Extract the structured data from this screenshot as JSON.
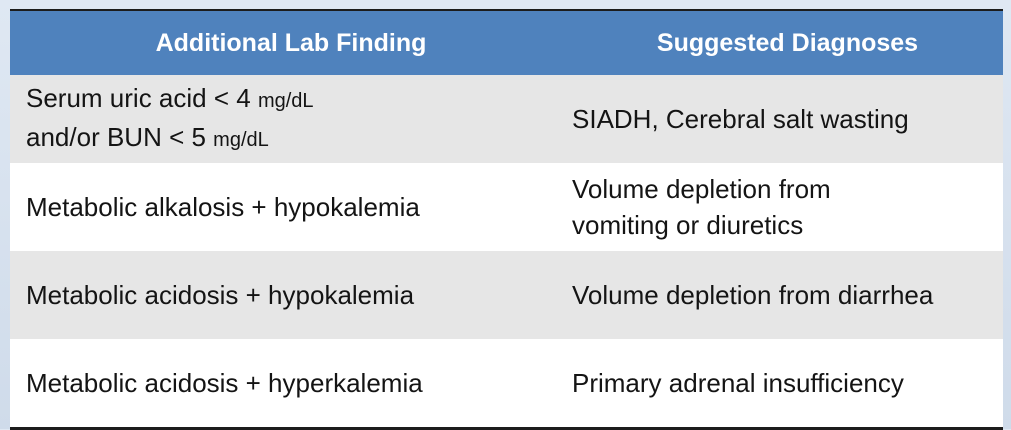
{
  "table": {
    "headers": [
      "Additional Lab Finding",
      "Suggested Diagnoses"
    ],
    "rows": [
      {
        "finding_line1": "Serum uric acid < 4",
        "finding_line1_unit": "mg/dL",
        "finding_line2": "and/or BUN < 5",
        "finding_line2_unit": "mg/dL",
        "diagnosis": "SIADH, Cerebral salt wasting"
      },
      {
        "finding": "Metabolic alkalosis + hypokalemia",
        "diagnosis_line1": "Volume depletion from",
        "diagnosis_line2": "vomiting or diuretics"
      },
      {
        "finding": "Metabolic acidosis + hypokalemia",
        "diagnosis": "Volume depletion from diarrhea"
      },
      {
        "finding": "Metabolic acidosis + hyperkalemia",
        "diagnosis": "Primary adrenal insufficiency"
      }
    ]
  },
  "colors": {
    "header_bg": "#4f82bd",
    "row_grey": "#e6e6e6",
    "row_white": "#ffffff"
  }
}
